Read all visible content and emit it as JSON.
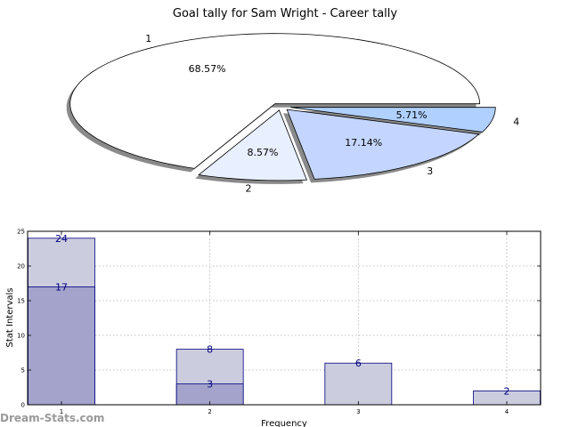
{
  "watermark": "Dream-Stats.com",
  "chart_data": [
    {
      "type": "pie",
      "title": "Goal tally for Sam Wright - Career tally",
      "categories": [
        "1",
        "2",
        "3",
        "4"
      ],
      "values": [
        68.57,
        8.57,
        17.14,
        5.71
      ],
      "value_labels": [
        "68.57%",
        "8.57%",
        "17.14%",
        "5.71%"
      ],
      "colors": [
        "#ffffff",
        "#e8efff",
        "#c4d6ff",
        "#b0d0ff"
      ],
      "exploded": true,
      "shadow": true
    },
    {
      "type": "bar",
      "xlabel": "Frequency",
      "ylabel": "Stat Intervals",
      "categories": [
        "1",
        "2",
        "3",
        "4"
      ],
      "series": [
        {
          "values": [
            24,
            8,
            6,
            2
          ],
          "color": "#ccccdf"
        },
        {
          "values": [
            17,
            3,
            0,
            0
          ],
          "color": "#a3a3cc"
        }
      ],
      "ylim": [
        0,
        25
      ],
      "yticks": [
        0,
        5,
        10,
        15,
        20,
        25
      ],
      "grid": true
    }
  ]
}
